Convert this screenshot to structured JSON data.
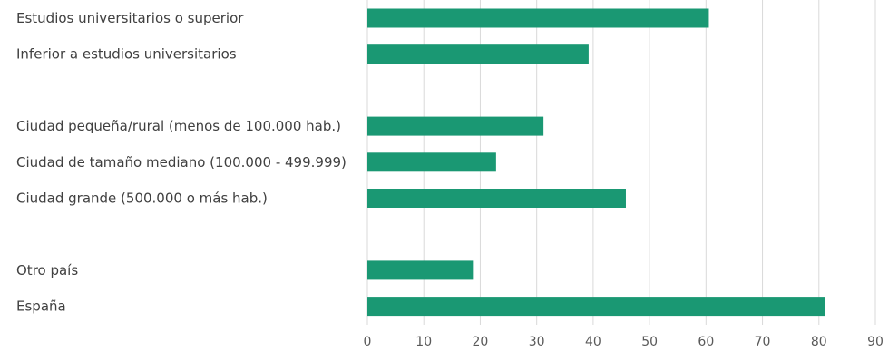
{
  "chart_data": {
    "type": "bar",
    "orientation": "horizontal",
    "categories": [
      "Estudios universitarios o superior",
      "Inferior a estudios universitarios",
      "",
      "Ciudad pequeña/rural (menos de 100.000 hab.)",
      "Ciudad de tamaño mediano (100.000 - 499.999)",
      "Ciudad grande (500.000 o más hab.)",
      "",
      "Otro país",
      "España"
    ],
    "values": [
      60.5,
      39.2,
      null,
      31.2,
      22.8,
      45.8,
      null,
      18.7,
      81.0
    ],
    "xlim": [
      0,
      90
    ],
    "xticks": [
      "0",
      "10",
      "20",
      "30",
      "40",
      "50",
      "60",
      "70",
      "80",
      "90"
    ],
    "grid": true,
    "bar_color": "#1a9873",
    "title": "",
    "xlabel": "",
    "ylabel": ""
  }
}
